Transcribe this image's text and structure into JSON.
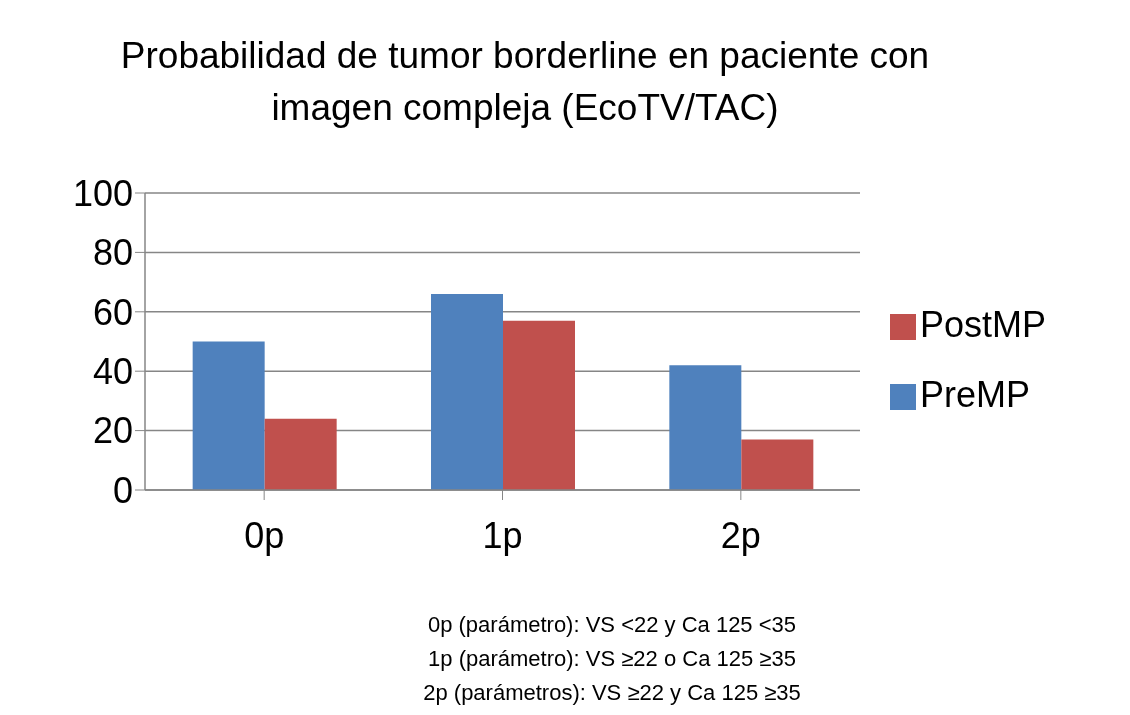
{
  "chart_data": {
    "type": "bar",
    "title": "Probabilidad de tumor borderline en paciente con imagen compleja (EcoTV/TAC)",
    "categories": [
      "0p",
      "1p",
      "2p"
    ],
    "series": [
      {
        "name": "PreMP",
        "color": "#4f81bd",
        "values": [
          50,
          66,
          42
        ]
      },
      {
        "name": "PostMP",
        "color": "#c0504d",
        "values": [
          24,
          57,
          17
        ]
      }
    ],
    "ylim": [
      0,
      100
    ],
    "yticks": [
      0,
      20,
      40,
      60,
      80,
      100
    ],
    "grid": "y",
    "legend": "right",
    "annotations": [
      "0p (parámetro): VS <22 y Ca 125 <35",
      "1p (parámetro): VS ≥22 o Ca 125 ≥35",
      "2p (parámetros): VS ≥22 y Ca 125 ≥35"
    ]
  }
}
